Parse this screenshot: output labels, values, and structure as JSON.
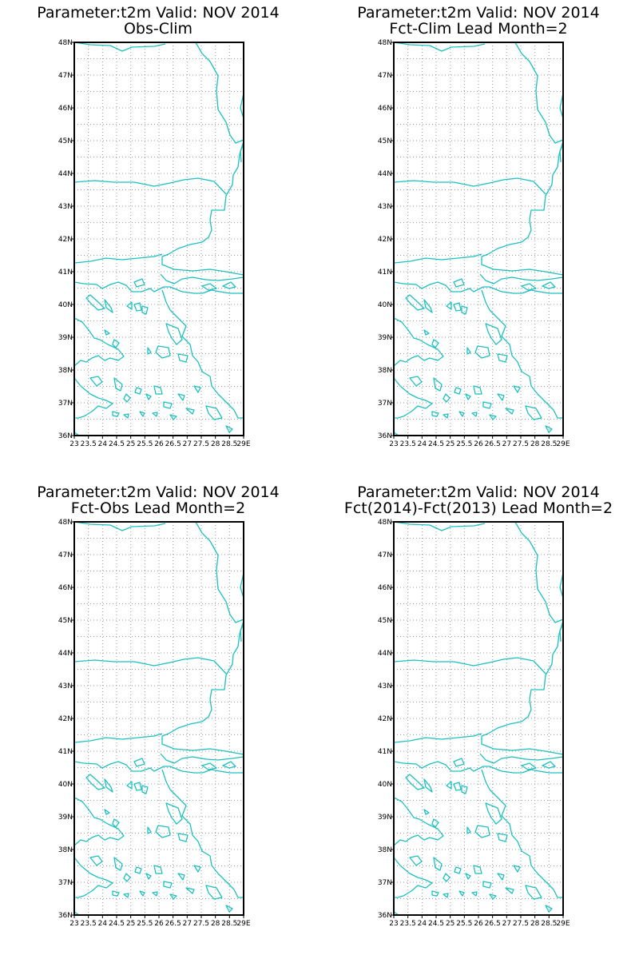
{
  "colors": {
    "coastline": "#1ec0c0",
    "frame": "#000000",
    "grid": "#9a9a9a",
    "background": "#ffffff"
  },
  "map": {
    "lon_range": [
      23,
      29
    ],
    "lat_range": [
      36,
      48
    ],
    "lat_ticks": [
      "48N",
      "47N",
      "46N",
      "45N",
      "44N",
      "43N",
      "42N",
      "41N",
      "40N",
      "39N",
      "38N",
      "37N",
      "36N"
    ],
    "lon_ticks": [
      "23",
      "23.5",
      "24",
      "24.5",
      "25",
      "25.5",
      "26",
      "26.5",
      "27",
      "27.5",
      "28",
      "28.5",
      "29E"
    ],
    "grid": true
  },
  "panels": [
    {
      "title1": "Parameter:t2m Valid: NOV 2014",
      "title2": "Obs-Clim"
    },
    {
      "title1": "Parameter:t2m Valid: NOV 2014",
      "title2": "Fct-Clim Lead Month=2"
    },
    {
      "title1": "Parameter:t2m Valid: NOV 2014",
      "title2": "Fct-Obs Lead Month=2"
    },
    {
      "title1": "Parameter:t2m Valid: NOV 2014",
      "title2": "Fct(2014)-Fct(2013) Lead Month=2"
    }
  ]
}
